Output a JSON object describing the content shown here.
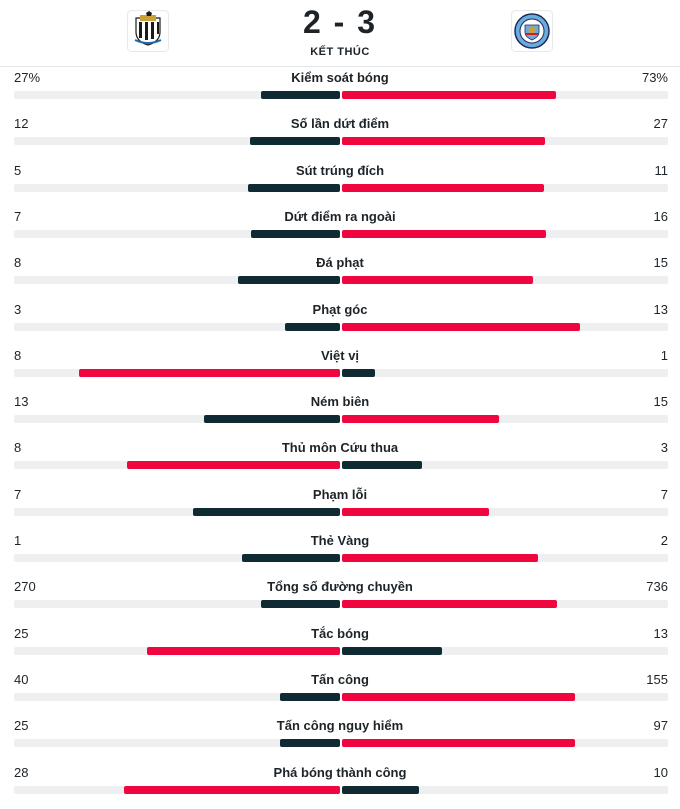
{
  "match": {
    "score": "2 - 3",
    "status": "KẾT THÚC",
    "home_crest_icon": "newcastle-crest-icon",
    "away_crest_icon": "man-city-crest-icon"
  },
  "colors": {
    "winner": "#f0063e",
    "loser": "#0f2a33",
    "track": "#eeeff1"
  },
  "stats": [
    {
      "label": "Kiểm soát bóng",
      "home": "27%",
      "away": "73%",
      "home_value": 27,
      "away_value": 73
    },
    {
      "label": "Số lần dứt điểm",
      "home": "12",
      "away": "27",
      "home_value": 12,
      "away_value": 27
    },
    {
      "label": "Sút trúng đích",
      "home": "5",
      "away": "11",
      "home_value": 5,
      "away_value": 11
    },
    {
      "label": "Dứt điểm ra ngoài",
      "home": "7",
      "away": "16",
      "home_value": 7,
      "away_value": 16
    },
    {
      "label": "Đá phạt",
      "home": "8",
      "away": "15",
      "home_value": 8,
      "away_value": 15
    },
    {
      "label": "Phạt góc",
      "home": "3",
      "away": "13",
      "home_value": 3,
      "away_value": 13
    },
    {
      "label": "Việt vị",
      "home": "8",
      "away": "1",
      "home_value": 8,
      "away_value": 1
    },
    {
      "label": "Ném biên",
      "home": "13",
      "away": "15",
      "home_value": 13,
      "away_value": 15
    },
    {
      "label": "Thủ môn Cứu thua",
      "home": "8",
      "away": "3",
      "home_value": 8,
      "away_value": 3
    },
    {
      "label": "Phạm lỗi",
      "home": "7",
      "away": "7",
      "home_value": 7,
      "away_value": 7
    },
    {
      "label": "Thẻ Vàng",
      "home": "1",
      "away": "2",
      "home_value": 1,
      "away_value": 2
    },
    {
      "label": "Tổng số đường chuyền",
      "home": "270",
      "away": "736",
      "home_value": 270,
      "away_value": 736
    },
    {
      "label": "Tắc bóng",
      "home": "25",
      "away": "13",
      "home_value": 25,
      "away_value": 13
    },
    {
      "label": "Tấn công",
      "home": "40",
      "away": "155",
      "home_value": 40,
      "away_value": 155
    },
    {
      "label": "Tấn công nguy hiểm",
      "home": "25",
      "away": "97",
      "home_value": 25,
      "away_value": 97
    },
    {
      "label": "Phá bóng thành công",
      "home": "28",
      "away": "10",
      "home_value": 28,
      "away_value": 10
    }
  ]
}
